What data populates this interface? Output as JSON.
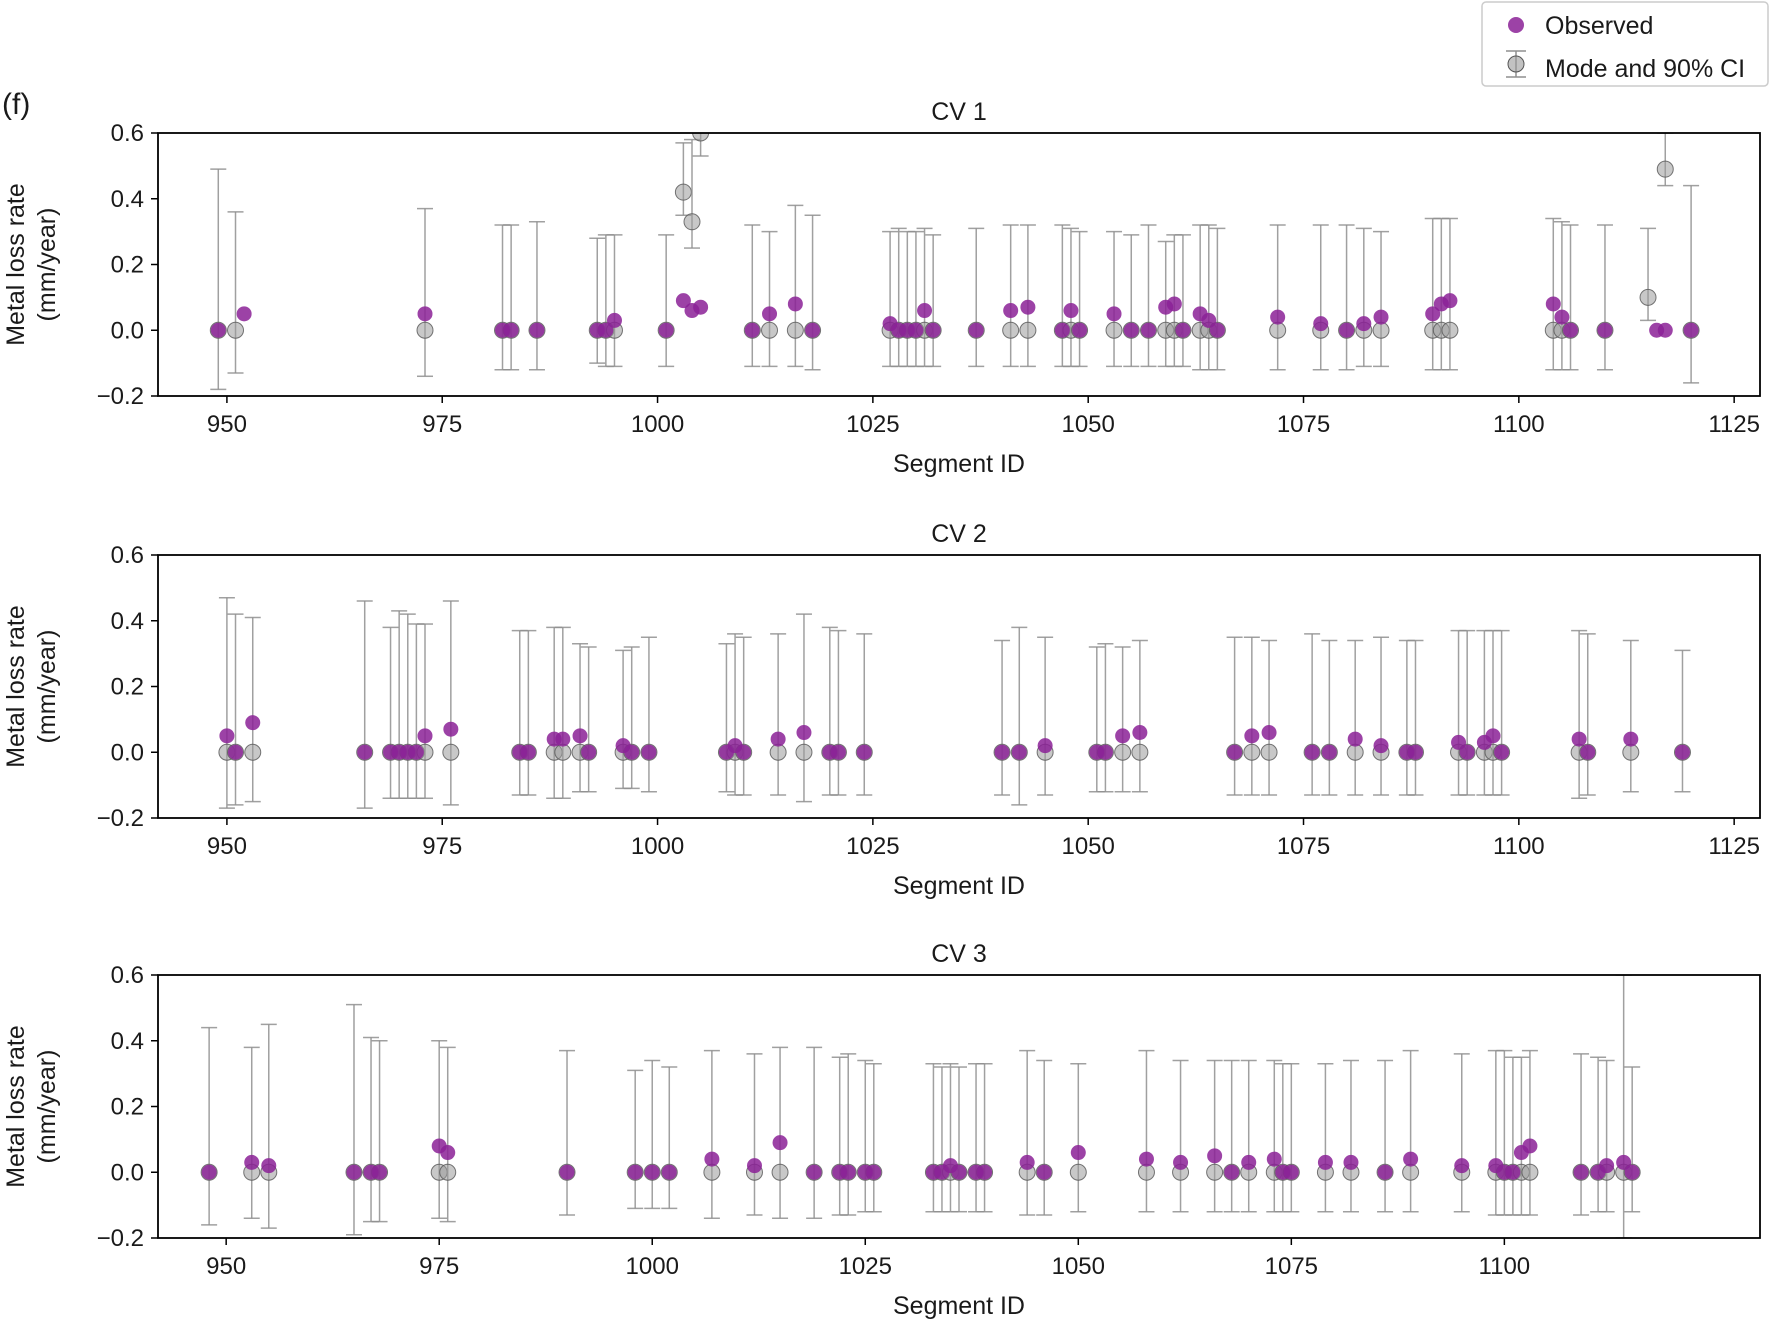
{
  "panel_label": "(f)",
  "legend": {
    "observed_label": "Observed",
    "model_label": "Mode and 90% CI"
  },
  "colors": {
    "observed": "#8b2196",
    "model_fill": "#9a9a9a",
    "model_edge": "#555555",
    "errorbar": "#8f8f8f",
    "axis": "#000000"
  },
  "chart_data": [
    {
      "type": "scatter",
      "title": "CV 1",
      "xlabel": "Segment ID",
      "ylabel": [
        "Metal loss rate",
        "(mm/year)"
      ],
      "xlim": [
        942,
        1128
      ],
      "ylim": [
        -0.2,
        0.6
      ],
      "xticks": [
        950,
        975,
        1000,
        1025,
        1050,
        1075,
        1100,
        1125
      ],
      "yticks": [
        -0.2,
        0.0,
        0.2,
        0.4,
        0.6
      ],
      "ytick_labels": [
        "−0.2",
        "0.0",
        "0.2",
        "0.4",
        "0.6"
      ],
      "grid": false,
      "series": [
        {
          "name": "Observed",
          "x": [
            949,
            952,
            973,
            982,
            983,
            986,
            993,
            994,
            995,
            1001,
            1003,
            1004,
            1005,
            1011,
            1013,
            1016,
            1018,
            1027,
            1028,
            1029,
            1030,
            1031,
            1032,
            1037,
            1041,
            1043,
            1047,
            1048,
            1049,
            1053,
            1055,
            1057,
            1059,
            1060,
            1061,
            1063,
            1064,
            1065,
            1072,
            1077,
            1080,
            1082,
            1084,
            1090,
            1091,
            1092,
            1104,
            1105,
            1106,
            1110,
            1116,
            1117,
            1120
          ],
          "y": [
            0.0,
            0.05,
            0.05,
            0.0,
            0.0,
            0.0,
            0.0,
            0.0,
            0.03,
            0.0,
            0.09,
            0.06,
            0.07,
            0.0,
            0.05,
            0.08,
            0.0,
            0.02,
            0.0,
            0.0,
            0.0,
            0.06,
            0.0,
            0.0,
            0.06,
            0.07,
            0.0,
            0.06,
            0.0,
            0.05,
            0.0,
            0.0,
            0.07,
            0.08,
            0.0,
            0.05,
            0.03,
            0.0,
            0.04,
            0.02,
            0.0,
            0.02,
            0.04,
            0.05,
            0.08,
            0.09,
            0.08,
            0.04,
            0.0,
            0.0,
            0.0,
            0.0,
            0.0
          ]
        },
        {
          "name": "Mode and 90% CI",
          "x": [
            949,
            951,
            973,
            982,
            983,
            986,
            993,
            994,
            995,
            1001,
            1003,
            1004,
            1005,
            1011,
            1013,
            1016,
            1018,
            1027,
            1028,
            1029,
            1030,
            1031,
            1032,
            1037,
            1041,
            1043,
            1047,
            1048,
            1049,
            1053,
            1055,
            1057,
            1059,
            1060,
            1061,
            1063,
            1064,
            1065,
            1072,
            1077,
            1080,
            1082,
            1084,
            1090,
            1091,
            1092,
            1104,
            1105,
            1106,
            1110,
            1115,
            1117,
            1120
          ],
          "y": [
            0.0,
            0.0,
            0.0,
            0.0,
            0.0,
            0.0,
            0.0,
            0.0,
            0.0,
            0.0,
            0.42,
            0.33,
            0.6,
            0.0,
            0.0,
            0.0,
            0.0,
            0.0,
            0.0,
            0.0,
            0.0,
            0.0,
            0.0,
            0.0,
            0.0,
            0.0,
            0.0,
            0.0,
            0.0,
            0.0,
            0.0,
            0.0,
            0.0,
            0.0,
            0.0,
            0.0,
            0.0,
            0.0,
            0.0,
            0.0,
            0.0,
            0.0,
            0.0,
            0.0,
            0.0,
            0.0,
            0.0,
            0.0,
            0.0,
            0.0,
            0.1,
            0.49,
            0.0
          ],
          "lower": [
            -0.18,
            -0.13,
            -0.14,
            -0.12,
            -0.12,
            -0.12,
            -0.1,
            -0.11,
            -0.11,
            -0.11,
            0.35,
            0.25,
            0.53,
            -0.11,
            -0.11,
            -0.11,
            -0.12,
            -0.11,
            -0.11,
            -0.11,
            -0.11,
            -0.11,
            -0.11,
            -0.11,
            -0.11,
            -0.11,
            -0.11,
            -0.11,
            -0.11,
            -0.11,
            -0.11,
            -0.11,
            -0.11,
            -0.11,
            -0.11,
            -0.12,
            -0.12,
            -0.12,
            -0.12,
            -0.12,
            -0.12,
            -0.11,
            -0.11,
            -0.12,
            -0.12,
            -0.12,
            -0.12,
            -0.12,
            -0.12,
            -0.12,
            0.03,
            0.44,
            -0.16
          ],
          "upper": [
            0.49,
            0.36,
            0.37,
            0.32,
            0.32,
            0.33,
            0.28,
            0.29,
            0.29,
            0.29,
            0.57,
            0.58,
            0.6,
            0.32,
            0.3,
            0.38,
            0.35,
            0.3,
            0.31,
            0.3,
            0.3,
            0.31,
            0.29,
            0.31,
            0.32,
            0.32,
            0.32,
            0.31,
            0.3,
            0.3,
            0.29,
            0.32,
            0.27,
            0.29,
            0.29,
            0.32,
            0.32,
            0.31,
            0.32,
            0.32,
            0.32,
            0.31,
            0.3,
            0.34,
            0.34,
            0.34,
            0.34,
            0.33,
            0.32,
            0.32,
            0.31,
            0.6,
            0.44
          ]
        }
      ]
    },
    {
      "type": "scatter",
      "title": "CV 2",
      "xlabel": "Segment ID",
      "ylabel": [
        "Metal loss rate",
        "(mm/year)"
      ],
      "xlim": [
        942,
        1128
      ],
      "ylim": [
        -0.2,
        0.6
      ],
      "xticks": [
        950,
        975,
        1000,
        1025,
        1050,
        1075,
        1100,
        1125
      ],
      "yticks": [
        -0.2,
        0.0,
        0.2,
        0.4,
        0.6
      ],
      "ytick_labels": [
        "−0.2",
        "0.0",
        "0.2",
        "0.4",
        "0.6"
      ],
      "grid": false,
      "series": [
        {
          "name": "Observed",
          "x": [
            950,
            951,
            953,
            966,
            969,
            970,
            971,
            972,
            973,
            976,
            984,
            985,
            988,
            989,
            991,
            992,
            996,
            997,
            999,
            1008,
            1009,
            1010,
            1014,
            1017,
            1020,
            1021,
            1024,
            1040,
            1042,
            1045,
            1051,
            1052,
            1054,
            1056,
            1067,
            1069,
            1071,
            1076,
            1078,
            1081,
            1084,
            1087,
            1088,
            1093,
            1094,
            1096,
            1097,
            1098,
            1107,
            1108,
            1113,
            1119
          ],
          "y": [
            0.05,
            0.0,
            0.09,
            0.0,
            0.0,
            0.0,
            0.0,
            0.0,
            0.05,
            0.07,
            0.0,
            0.0,
            0.04,
            0.04,
            0.05,
            0.0,
            0.02,
            0.0,
            0.0,
            0.0,
            0.02,
            0.0,
            0.04,
            0.06,
            0.0,
            0.0,
            0.0,
            0.0,
            0.0,
            0.02,
            0.0,
            0.0,
            0.05,
            0.06,
            0.0,
            0.05,
            0.06,
            0.0,
            0.0,
            0.04,
            0.02,
            0.0,
            0.0,
            0.03,
            0.0,
            0.03,
            0.05,
            0.0,
            0.04,
            0.0,
            0.04,
            0.0
          ]
        },
        {
          "name": "Mode and 90% CI",
          "x": [
            950,
            951,
            953,
            966,
            969,
            970,
            971,
            972,
            973,
            976,
            984,
            985,
            988,
            989,
            991,
            992,
            996,
            997,
            999,
            1008,
            1009,
            1010,
            1014,
            1017,
            1020,
            1021,
            1024,
            1040,
            1042,
            1045,
            1051,
            1052,
            1054,
            1056,
            1067,
            1069,
            1071,
            1076,
            1078,
            1081,
            1084,
            1087,
            1088,
            1093,
            1094,
            1096,
            1097,
            1098,
            1107,
            1108,
            1113,
            1119
          ],
          "y": [
            0.0,
            0.0,
            0.0,
            0.0,
            0.0,
            0.0,
            0.0,
            0.0,
            0.0,
            0.0,
            0.0,
            0.0,
            0.0,
            0.0,
            0.0,
            0.0,
            0.0,
            0.0,
            0.0,
            0.0,
            0.0,
            0.0,
            0.0,
            0.0,
            0.0,
            0.0,
            0.0,
            0.0,
            0.0,
            0.0,
            0.0,
            0.0,
            0.0,
            0.0,
            0.0,
            0.0,
            0.0,
            0.0,
            0.0,
            0.0,
            0.0,
            0.0,
            0.0,
            0.0,
            0.0,
            0.0,
            0.0,
            0.0,
            0.0,
            0.0,
            0.0,
            0.0
          ],
          "lower": [
            -0.17,
            -0.16,
            -0.15,
            -0.17,
            -0.14,
            -0.14,
            -0.14,
            -0.14,
            -0.14,
            -0.16,
            -0.13,
            -0.13,
            -0.14,
            -0.14,
            -0.12,
            -0.12,
            -0.11,
            -0.11,
            -0.12,
            -0.12,
            -0.13,
            -0.13,
            -0.13,
            -0.15,
            -0.13,
            -0.13,
            -0.13,
            -0.13,
            -0.16,
            -0.13,
            -0.12,
            -0.12,
            -0.12,
            -0.12,
            -0.13,
            -0.13,
            -0.13,
            -0.13,
            -0.13,
            -0.13,
            -0.13,
            -0.13,
            -0.13,
            -0.13,
            -0.13,
            -0.13,
            -0.13,
            -0.13,
            -0.14,
            -0.13,
            -0.12,
            -0.12
          ],
          "upper": [
            0.47,
            0.42,
            0.41,
            0.46,
            0.38,
            0.43,
            0.42,
            0.39,
            0.39,
            0.46,
            0.37,
            0.37,
            0.38,
            0.38,
            0.33,
            0.32,
            0.31,
            0.32,
            0.35,
            0.33,
            0.36,
            0.35,
            0.36,
            0.42,
            0.38,
            0.37,
            0.36,
            0.34,
            0.38,
            0.35,
            0.32,
            0.33,
            0.32,
            0.34,
            0.35,
            0.35,
            0.34,
            0.36,
            0.34,
            0.34,
            0.35,
            0.34,
            0.34,
            0.37,
            0.37,
            0.37,
            0.37,
            0.37,
            0.37,
            0.36,
            0.34,
            0.31
          ]
        }
      ]
    },
    {
      "type": "scatter",
      "title": "CV 3",
      "xlabel": "Segment ID",
      "ylabel": [
        "Metal loss rate",
        "(mm/year)"
      ],
      "xlim": [
        942,
        1130
      ],
      "ylim": [
        -0.2,
        0.6
      ],
      "xticks": [
        950,
        975,
        1000,
        1025,
        1050,
        1075,
        1100
      ],
      "yticks": [
        -0.2,
        0.0,
        0.2,
        0.4,
        0.6
      ],
      "ytick_labels": [
        "−0.2",
        "0.0",
        "0.2",
        "0.4",
        "0.6"
      ],
      "grid": false,
      "series": [
        {
          "name": "Observed",
          "x": [
            948,
            953,
            955,
            965,
            967,
            968,
            975,
            976,
            990,
            998,
            1000,
            1002,
            1007,
            1012,
            1015,
            1019,
            1022,
            1023,
            1025,
            1026,
            1033,
            1034,
            1035,
            1036,
            1038,
            1039,
            1044,
            1046,
            1050,
            1058,
            1062,
            1066,
            1068,
            1070,
            1073,
            1074,
            1075,
            1079,
            1082,
            1086,
            1089,
            1095,
            1099,
            1100,
            1101,
            1102,
            1103,
            1109,
            1111,
            1112,
            1114,
            1115
          ],
          "y": [
            0.0,
            0.03,
            0.02,
            0.0,
            0.0,
            0.0,
            0.08,
            0.06,
            0.0,
            0.0,
            0.0,
            0.0,
            0.04,
            0.02,
            0.09,
            0.0,
            0.0,
            0.0,
            0.0,
            0.0,
            0.0,
            0.0,
            0.02,
            0.0,
            0.0,
            0.0,
            0.03,
            0.0,
            0.06,
            0.04,
            0.03,
            0.05,
            0.0,
            0.03,
            0.04,
            0.0,
            0.0,
            0.03,
            0.03,
            0.0,
            0.04,
            0.02,
            0.02,
            0.0,
            0.0,
            0.06,
            0.08,
            0.0,
            0.0,
            0.02,
            0.03,
            0.0
          ]
        },
        {
          "name": "Mode and 90% CI",
          "x": [
            948,
            953,
            955,
            965,
            967,
            968,
            975,
            976,
            990,
            998,
            1000,
            1002,
            1007,
            1012,
            1015,
            1019,
            1022,
            1023,
            1025,
            1026,
            1033,
            1034,
            1035,
            1036,
            1038,
            1039,
            1044,
            1046,
            1050,
            1058,
            1062,
            1066,
            1068,
            1070,
            1073,
            1074,
            1075,
            1079,
            1082,
            1086,
            1089,
            1095,
            1099,
            1100,
            1101,
            1102,
            1103,
            1109,
            1111,
            1112,
            1114,
            1115
          ],
          "y": [
            0.0,
            0.0,
            0.0,
            0.0,
            0.0,
            0.0,
            0.0,
            0.0,
            0.0,
            0.0,
            0.0,
            0.0,
            0.0,
            0.0,
            0.0,
            0.0,
            0.0,
            0.0,
            0.0,
            0.0,
            0.0,
            0.0,
            0.0,
            0.0,
            0.0,
            0.0,
            0.0,
            0.0,
            0.0,
            0.0,
            0.0,
            0.0,
            0.0,
            0.0,
            0.0,
            0.0,
            0.0,
            0.0,
            0.0,
            0.0,
            0.0,
            0.0,
            0.0,
            0.0,
            0.0,
            0.0,
            0.0,
            0.0,
            0.0,
            0.0,
            0.0,
            0.0
          ],
          "lower": [
            -0.16,
            -0.14,
            -0.17,
            -0.19,
            -0.15,
            -0.15,
            -0.14,
            -0.15,
            -0.13,
            -0.11,
            -0.11,
            -0.11,
            -0.14,
            -0.13,
            -0.14,
            -0.14,
            -0.13,
            -0.13,
            -0.12,
            -0.12,
            -0.12,
            -0.12,
            -0.12,
            -0.12,
            -0.12,
            -0.12,
            -0.13,
            -0.13,
            -0.12,
            -0.12,
            -0.12,
            -0.12,
            -0.12,
            -0.12,
            -0.12,
            -0.12,
            -0.12,
            -0.12,
            -0.12,
            -0.12,
            -0.12,
            -0.12,
            -0.13,
            -0.13,
            -0.13,
            -0.13,
            -0.13,
            -0.13,
            -0.12,
            -0.12,
            -0.2,
            -0.12
          ],
          "upper": [
            0.44,
            0.38,
            0.45,
            0.51,
            0.41,
            0.4,
            0.4,
            0.38,
            0.37,
            0.31,
            0.34,
            0.32,
            0.37,
            0.36,
            0.38,
            0.38,
            0.35,
            0.36,
            0.34,
            0.33,
            0.33,
            0.32,
            0.33,
            0.32,
            0.33,
            0.33,
            0.37,
            0.34,
            0.33,
            0.37,
            0.34,
            0.34,
            0.34,
            0.34,
            0.34,
            0.33,
            0.33,
            0.33,
            0.34,
            0.34,
            0.37,
            0.36,
            0.37,
            0.37,
            0.35,
            0.35,
            0.37,
            0.36,
            0.35,
            0.34,
            0.6,
            0.32
          ]
        }
      ]
    }
  ]
}
